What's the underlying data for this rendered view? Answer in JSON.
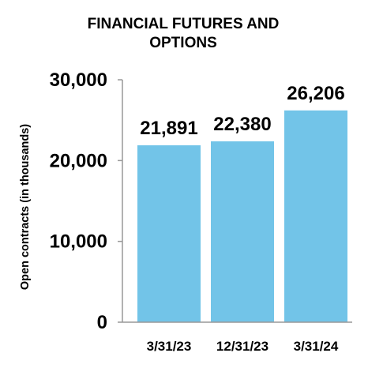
{
  "chart_data": {
    "type": "bar",
    "title_lines": [
      "FINANCIAL FUTURES AND",
      "OPTIONS"
    ],
    "ylabel": "Open contracts (in thousands)",
    "xlabel": "",
    "categories": [
      "3/31/23",
      "12/31/23",
      "3/31/24"
    ],
    "values": [
      21891,
      22380,
      26206
    ],
    "data_labels": [
      "21,891",
      "22,380",
      "26,206"
    ],
    "ylim": [
      0,
      30000
    ],
    "yticks": [
      0,
      10000,
      20000,
      30000
    ],
    "ytick_labels": [
      "0",
      "10,000",
      "20,000",
      "30,000"
    ],
    "grid": false,
    "legend": "none",
    "colors": {
      "bar": "#72C4E8",
      "axis": "#999999",
      "text": "#000000"
    }
  }
}
